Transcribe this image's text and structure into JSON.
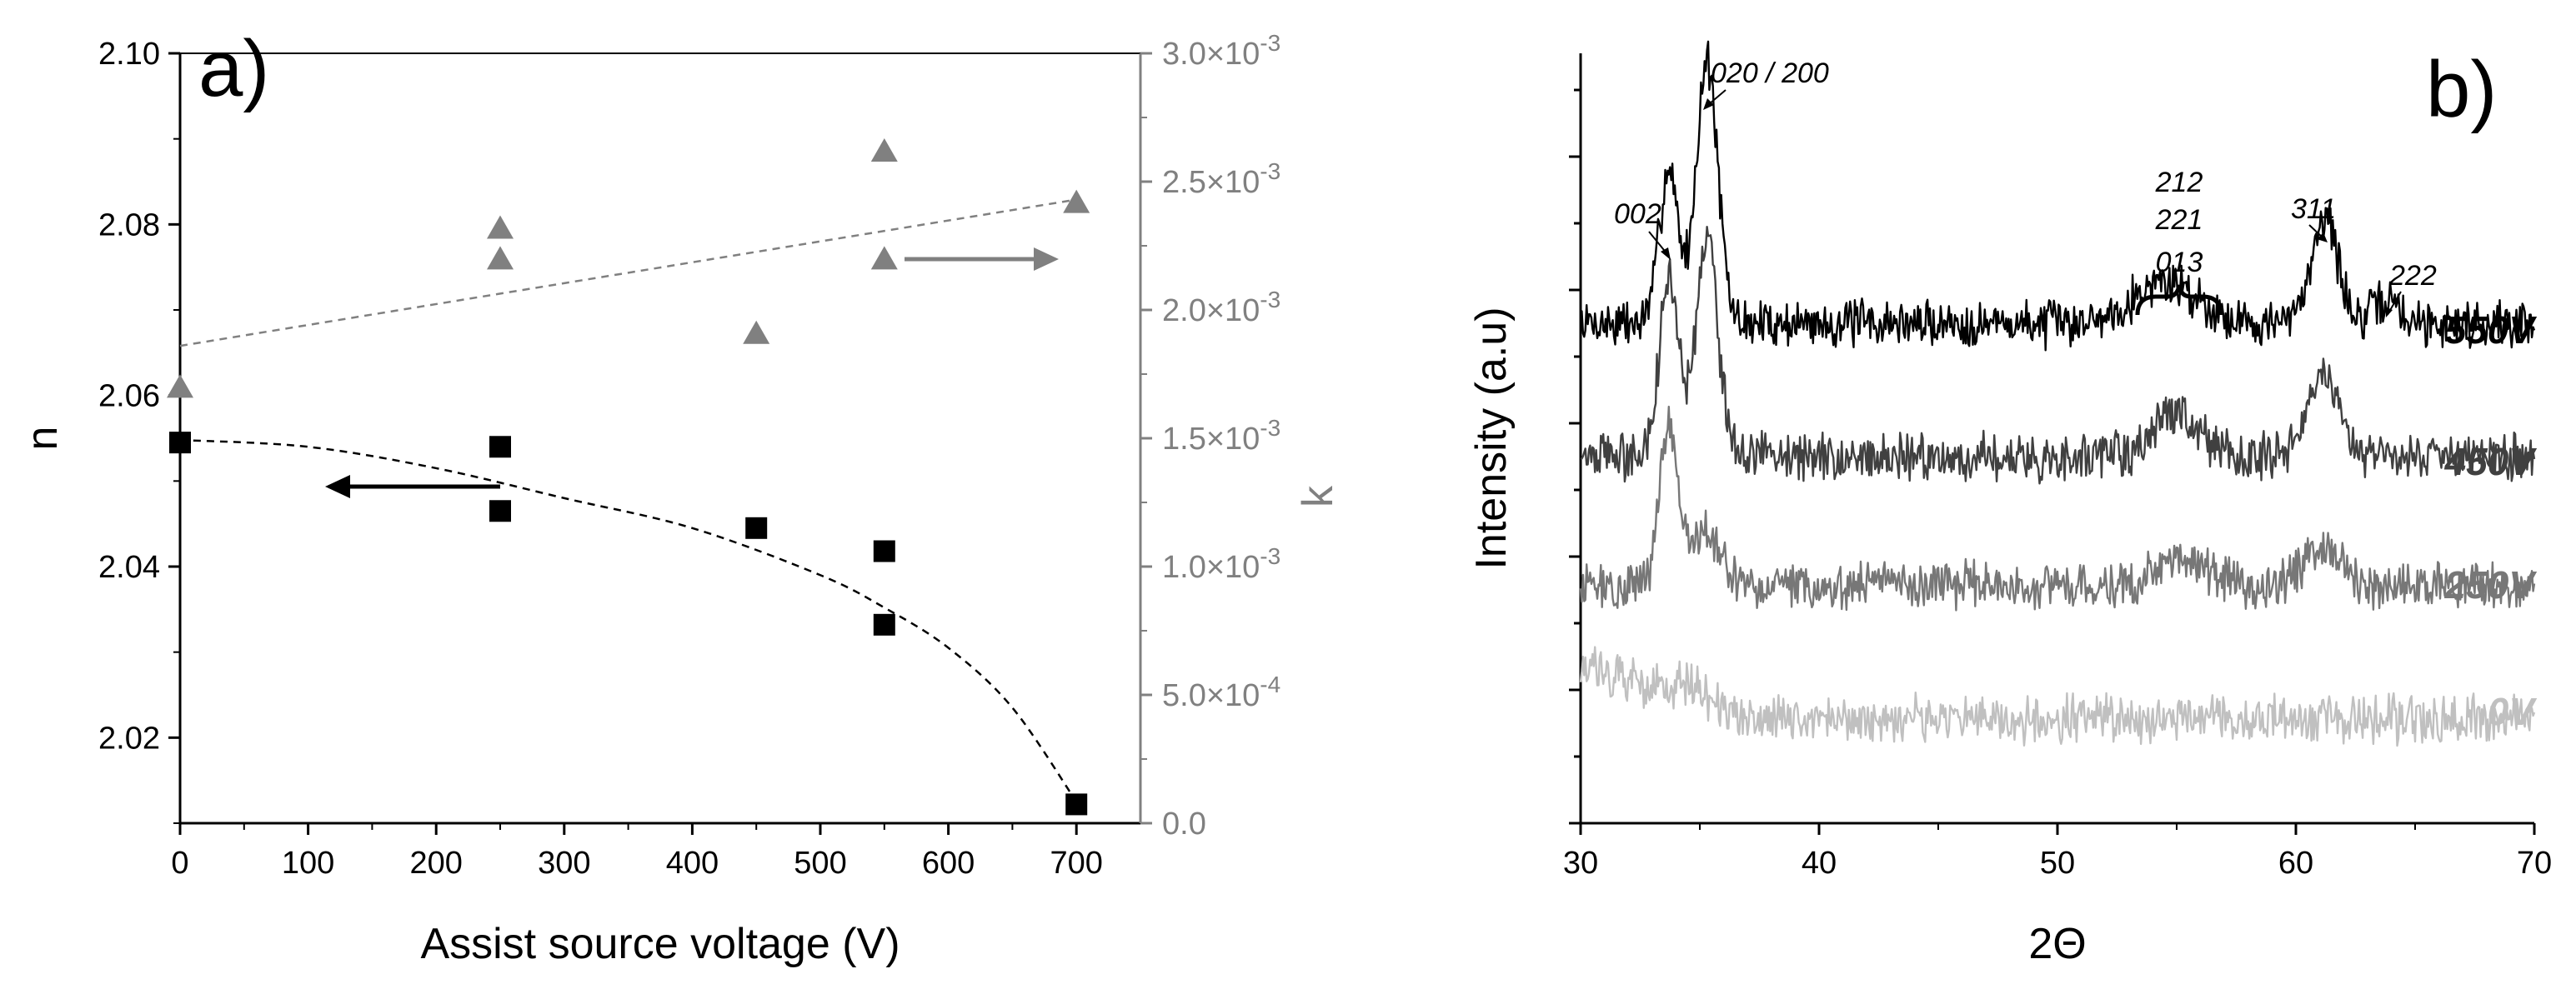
{
  "chart_data": [
    {
      "panel_label": "a)",
      "type": "scatter",
      "xlabel": "Assist source voltage (V)",
      "ylabel_left": "n",
      "ylabel_right": "k",
      "xlim": [
        0,
        750
      ],
      "ylim_left": [
        2.01,
        2.1
      ],
      "ylim_right": [
        0,
        0.003
      ],
      "x_ticks": [
        "0",
        "100",
        "200",
        "300",
        "400",
        "500",
        "600",
        "700"
      ],
      "y_ticks_left": [
        "2.02",
        "2.04",
        "2.06",
        "2.08",
        "2.10"
      ],
      "y_ticks_right": [
        {
          "mant": "0.0",
          "exp": ""
        },
        {
          "mant": "5.0",
          "exp": "-4"
        },
        {
          "mant": "1.0",
          "exp": "-3"
        },
        {
          "mant": "1.5",
          "exp": "-3"
        },
        {
          "mant": "2.0",
          "exp": "-3"
        },
        {
          "mant": "2.5",
          "exp": "-3"
        },
        {
          "mant": "3.0",
          "exp": "-3"
        }
      ],
      "series": [
        {
          "name": "n",
          "axis": "left",
          "marker": "square",
          "color": "#000000",
          "x": [
            0,
            250,
            250,
            450,
            550,
            550,
            700
          ],
          "y": [
            2.0545,
            2.054,
            2.0465,
            2.0445,
            2.0418,
            2.0332,
            2.0122
          ],
          "fit": {
            "style": "dashed",
            "x": [
              0,
              100,
              200,
              300,
              400,
              500,
              550,
              600,
              650,
              700
            ],
            "y": [
              2.0548,
              2.054,
              2.0515,
              2.048,
              2.0445,
              2.039,
              2.0352,
              2.0305,
              2.0235,
              2.0125
            ]
          },
          "arrow_direction": "left"
        },
        {
          "name": "k",
          "axis": "right",
          "marker": "triangle",
          "color": "#808080",
          "x": [
            0,
            250,
            250,
            450,
            550,
            550,
            700
          ],
          "y": [
            0.0017,
            0.00232,
            0.0022,
            0.00191,
            0.00262,
            0.0022,
            0.00242
          ],
          "fit": {
            "style": "dashed",
            "x": [
              0,
              700
            ],
            "y": [
              0.00186,
              0.00243
            ]
          },
          "arrow_direction": "right"
        }
      ]
    },
    {
      "panel_label": "b)",
      "type": "line",
      "xlabel": "2Θ",
      "ylabel": "Intensity (a.u)",
      "xlim": [
        30,
        70
      ],
      "x_ticks": [
        "30",
        "40",
        "50",
        "60",
        "70"
      ],
      "series": [
        {
          "name": "550V",
          "color": "#000000",
          "baseline": 880,
          "peaks": [
            [
              33.7,
              3.0,
              0.4
            ],
            [
              35.3,
              5.1,
              0.45
            ],
            [
              54.5,
              0.8,
              1.4
            ],
            [
              61.2,
              2.1,
              0.55
            ],
            [
              63.8,
              0.45,
              0.5
            ]
          ]
        },
        {
          "name": "450V",
          "color": "#404040",
          "baseline": 720,
          "peaks": [
            [
              33.7,
              3.4,
              0.4
            ],
            [
              35.3,
              4.3,
              0.45
            ],
            [
              55.0,
              0.9,
              0.9
            ],
            [
              61.2,
              1.6,
              0.6
            ]
          ]
        },
        {
          "name": "250V",
          "color": "#777777",
          "baseline": 565,
          "peaks": [
            [
              33.7,
              3.1,
              0.4
            ],
            [
              35.3,
              1.0,
              0.6
            ],
            [
              55.0,
              0.5,
              1.1
            ],
            [
              61.0,
              0.7,
              0.8
            ]
          ]
        },
        {
          "name": "0V",
          "color": "#c0c0c0",
          "baseline": 405,
          "peaks": [
            [
              31.0,
              0.9,
              1.8
            ],
            [
              34.5,
              0.5,
              1.0
            ]
          ]
        }
      ],
      "annotations": [
        "002",
        "020 / 200",
        "212",
        "221",
        "013",
        "311",
        "222"
      ]
    }
  ]
}
